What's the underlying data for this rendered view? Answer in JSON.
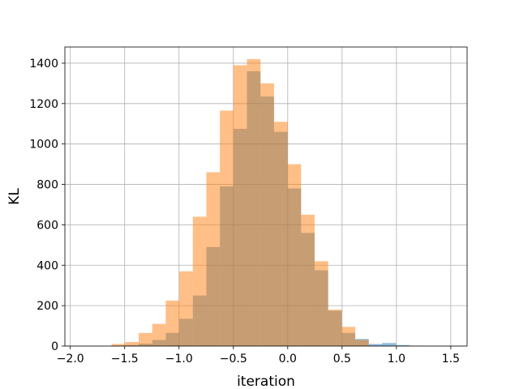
{
  "chart_data": {
    "type": "histogram",
    "title": "",
    "xlabel": "iteration",
    "ylabel": "KL",
    "xlim": [
      -2.05,
      1.65
    ],
    "ylim": [
      0,
      1480
    ],
    "xticks": [
      -2.0,
      -1.5,
      -1.0,
      -0.5,
      0.0,
      0.5,
      1.0,
      1.5
    ],
    "xtick_labels": [
      "−2.0",
      "−1.5",
      "−1.0",
      "−0.5",
      "0.0",
      "0.5",
      "1.0",
      "1.5"
    ],
    "yticks": [
      0,
      200,
      400,
      600,
      800,
      1000,
      1200,
      1400
    ],
    "ytick_labels": [
      "0",
      "200",
      "400",
      "600",
      "800",
      "1000",
      "1200",
      "1400"
    ],
    "grid": true,
    "legend": null,
    "series": [
      {
        "color": "#1f77b4",
        "opacity": 0.5,
        "bin_start": -1.62,
        "bin_width": 0.1245,
        "counts": [
          2,
          5,
          12,
          30,
          65,
          135,
          250,
          490,
          790,
          1075,
          1360,
          1235,
          1060,
          780,
          560,
          375,
          175,
          65,
          35,
          10,
          15,
          5,
          2
        ]
      },
      {
        "color": "#ff7f0e",
        "opacity": 0.5,
        "bin_start": -1.62,
        "bin_width": 0.1245,
        "counts": [
          10,
          20,
          65,
          110,
          225,
          370,
          640,
          860,
          1165,
          1390,
          1420,
          1300,
          1110,
          900,
          650,
          420,
          180,
          95,
          30
        ]
      }
    ]
  }
}
